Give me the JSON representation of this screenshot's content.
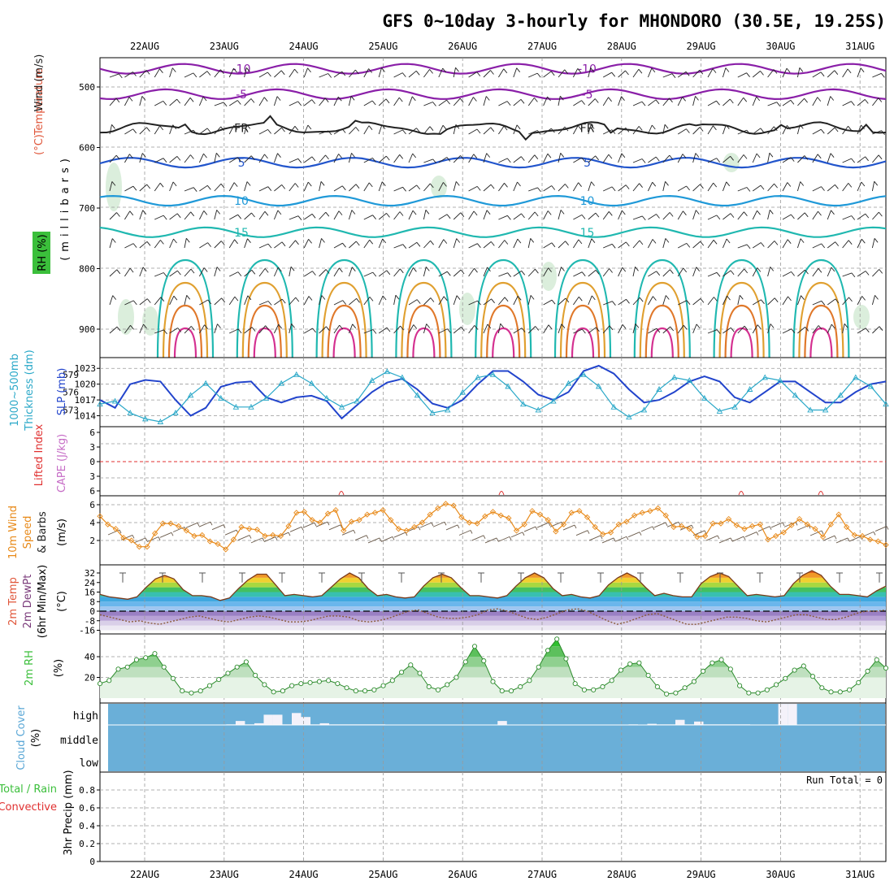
{
  "title": "GFS 0~10day 3-hourly for MHONDORO (30.5E, 19.25S)",
  "dates": [
    "22AUG",
    "23AUG",
    "24AUG",
    "25AUG",
    "26AUG",
    "27AUG",
    "28AUG",
    "29AUG",
    "30AUG",
    "31AUG"
  ],
  "colors": {
    "rh": "#3bbf3b",
    "temperature": "#e0563a",
    "wind": "#2a2a2a",
    "thickness": "#2aa8c8",
    "slp": "#2244cc",
    "cape": "#c66cc6",
    "lifted_index": "#e03030",
    "wind10m": "#e88a1a",
    "cloud": "#6aafd8",
    "precip_total": "#3bbf3b",
    "precip_conv": "#e03030"
  },
  "labels": {
    "upper_ylabel_wind": "Wind",
    "upper_ylabel_units": "(m/s)",
    "upper_ylabel_temp": "Temperature",
    "upper_ylabel_temp_units": "(°C)",
    "upper_ylabel_rh": "RH (%)",
    "upper_ylabel_mb": "(millibars)",
    "thick_label": "1000~500mb",
    "thick_label2": "Thickness (dm)",
    "slp_label": "SLP (mb)",
    "li_label": "Lifted Index",
    "cape_label": "CAPE (J/kg)",
    "wind10_label": "10m Wind",
    "wind10_label2": "Speed",
    "wind10_label3": "& Barbs",
    "wind10_units": "(m/s)",
    "temp2m_label": "2m Temp",
    "temp2m_label2": "2m DewPt",
    "temp2m_label3": "(6hr Min/Max)",
    "temp2m_units": "(°C)",
    "rh2m_label": "2m RH",
    "rh2m_units": "(%)",
    "cloud_label": "Cloud Cover",
    "cloud_units": "(%)",
    "cloud_high": "high",
    "cloud_middle": "middle",
    "cloud_low": "low",
    "precip_label1": "Total / Rain",
    "precip_label2": "Convective",
    "precip_label3": "3hr Precip (mm)",
    "run_total": "Run Total = 0",
    "contour_m10": "-10",
    "contour_m5": "-5",
    "contour_fr": "FR",
    "contour_5": "5",
    "contour_10": "10",
    "contour_15": "15"
  },
  "chart_data": [
    {
      "type": "line",
      "panel": "upper-air cross-section",
      "ylabel": "(millibars)",
      "ylim": [
        1000,
        450
      ],
      "yticks": [
        "500",
        "600",
        "700",
        "800",
        "900"
      ],
      "isotherms": [
        {
          "name": "-10",
          "level_mb": 470
        },
        {
          "name": "-5",
          "level_mb": 512
        },
        {
          "name": "FR",
          "level_mb": 568
        },
        {
          "name": "5",
          "level_mb": 625
        },
        {
          "name": "10",
          "level_mb": 688
        },
        {
          "name": "15",
          "level_mb": 740
        }
      ]
    },
    {
      "type": "line",
      "panel": "thickness-slp",
      "thickness_yticks": [
        "579",
        "576",
        "573"
      ],
      "slp_yticks": [
        "1023",
        "1020",
        "1017",
        "1014"
      ],
      "series": [
        {
          "name": "SLP (mb)",
          "values": [
            1017,
            1015.5,
            1020,
            1020.8,
            1020.5,
            1017,
            1014,
            1015.5,
            1019.5,
            1020.3,
            1020.5,
            1017.5,
            1016.5,
            1017.5,
            1017.8,
            1016.8,
            1013.5,
            1016,
            1018.5,
            1020.3,
            1021,
            1019,
            1016.3,
            1015.5,
            1017,
            1020,
            1022.5,
            1022.5,
            1020.5,
            1018,
            1017,
            1018.5,
            1022.5,
            1023.5,
            1022,
            1019,
            1016.5,
            1017,
            1018.5,
            1020.5,
            1021.5,
            1020.5,
            1017.5,
            1016.5,
            1018.5,
            1020.5,
            1020.5,
            1018.5,
            1016.5,
            1016.5,
            1018.5,
            1020,
            1020.5
          ]
        },
        {
          "name": "1000~500mb Thickness (dm)",
          "values": [
            574,
            574.5,
            572.5,
            571.5,
            571,
            572.5,
            575.5,
            577.5,
            575,
            573.5,
            573.5,
            575,
            577.5,
            579,
            577.5,
            575,
            573.5,
            574.5,
            578,
            579.5,
            578.5,
            575.5,
            572.5,
            573,
            576,
            578.5,
            579,
            577,
            574,
            573,
            574.5,
            577.5,
            579,
            577,
            573.5,
            571.8,
            573,
            576.5,
            578.5,
            578,
            575,
            572.8,
            573.5,
            576.5,
            578.5,
            578,
            575.5,
            573,
            573,
            575.5,
            578.5,
            577,
            574
          ]
        }
      ]
    },
    {
      "type": "line",
      "panel": "lifted-index-cape",
      "yticks": [
        "6",
        "3",
        "0",
        "3",
        "6"
      ],
      "series": [
        {
          "name": "Lifted Index",
          "values": [
            0
          ]
        }
      ]
    },
    {
      "type": "line",
      "panel": "10m-wind",
      "ylim": [
        0,
        6.8
      ],
      "yticks": [
        "6",
        "4",
        "2"
      ],
      "series": [
        {
          "name": "10m Wind Speed",
          "values": [
            4.7,
            3.8,
            3.3,
            2.3,
            2.0,
            1.3,
            1.3,
            2.8,
            3.9,
            3.9,
            3.6,
            3.1,
            2.5,
            2.6,
            1.9,
            1.6,
            1.0,
            2.1,
            3.5,
            3.3,
            3.2,
            2.5,
            2.6,
            2.5,
            3.6,
            5.1,
            5.2,
            4.3,
            4.0,
            5.0,
            5.4,
            3.1,
            4.1,
            4.3,
            4.9,
            5.1,
            5.4,
            4.3,
            3.3,
            3.1,
            3.5,
            4.0,
            4.9,
            5.6,
            6.1,
            5.9,
            4.6,
            4.0,
            3.9,
            4.7,
            5.2,
            4.8,
            4.5,
            3.1,
            3.8,
            5.3,
            4.9,
            4.3,
            3.0,
            3.8,
            5.1,
            5.3,
            4.6,
            3.5,
            2.7,
            2.9,
            3.8,
            4.1,
            4.8,
            5.1,
            5.3,
            5.6,
            4.8,
            3.5,
            3.6,
            3.3,
            2.4,
            2.5,
            3.9,
            3.9,
            4.4,
            3.7,
            3.3,
            3.6,
            3.8,
            2.1,
            2.5,
            2.9,
            3.7,
            4.4,
            3.8,
            3.3,
            2.4,
            3.8,
            4.9,
            3.5,
            2.6,
            2.5,
            2.1,
            1.9,
            1.5
          ]
        }
      ]
    },
    {
      "type": "area",
      "panel": "2m-temp",
      "ylim": [
        -16,
        36
      ],
      "yticks": [
        "32",
        "24",
        "16",
        "8",
        "0",
        "-8",
        "-16"
      ],
      "series": [
        {
          "name": "2m Temp",
          "values": [
            14,
            12,
            11,
            10,
            12,
            20,
            27,
            30,
            27,
            18,
            13,
            13,
            12,
            9,
            11,
            19,
            26,
            31,
            31,
            22,
            13,
            14,
            13,
            12,
            13,
            20,
            27,
            32,
            28,
            19,
            13,
            14,
            12,
            11,
            12,
            21,
            28,
            31,
            28,
            20,
            13,
            13,
            12,
            11,
            13,
            21,
            28,
            32,
            28,
            19,
            13,
            14,
            12,
            11,
            13,
            22,
            28,
            32,
            28,
            20,
            13,
            15,
            13,
            12,
            12,
            23,
            29,
            32,
            29,
            21,
            13,
            14,
            13,
            12,
            13,
            23,
            30,
            34,
            30,
            21,
            14,
            14,
            13,
            12,
            17,
            21
          ]
        },
        {
          "name": "2m DewPt",
          "values": [
            -3,
            -5,
            -7,
            -9,
            -8,
            -10,
            -11,
            -9,
            -7,
            -5,
            -4,
            -6,
            -8,
            -9,
            -7,
            -5,
            -4,
            -5,
            -7,
            -9,
            -9,
            -8,
            -6,
            -4,
            -4,
            -5,
            -8,
            -9,
            -8,
            -6,
            -3,
            0,
            1,
            -2,
            -5,
            -6,
            -6,
            -5,
            -3,
            1,
            2,
            0,
            -3,
            -6,
            -7,
            -5,
            -2,
            1,
            2,
            0,
            -4,
            -8,
            -11,
            -9,
            -6,
            -3,
            -2,
            -5,
            -8,
            -11,
            -11,
            -9,
            -7,
            -5,
            -5,
            -6,
            -8,
            -9,
            -7,
            -5,
            -3,
            -3,
            -5,
            -7,
            -7,
            -5,
            -2,
            0,
            0,
            1
          ]
        }
      ]
    },
    {
      "type": "area",
      "panel": "2m-rh",
      "ylim": [
        0,
        58
      ],
      "yticks": [
        "40",
        "20"
      ],
      "series": [
        {
          "name": "2m RH",
          "values": [
            14,
            17,
            28,
            30,
            37,
            39,
            43,
            30,
            19,
            7,
            5,
            7,
            12,
            18,
            24,
            30,
            35,
            22,
            13,
            6,
            7,
            12,
            14,
            15,
            16,
            17,
            14,
            10,
            7,
            7,
            8,
            12,
            17,
            25,
            32,
            24,
            11,
            8,
            13,
            20,
            35,
            50,
            36,
            16,
            7,
            7,
            11,
            17,
            30,
            46,
            57,
            38,
            14,
            8,
            8,
            11,
            17,
            27,
            33,
            34,
            22,
            11,
            4,
            5,
            10,
            16,
            26,
            34,
            37,
            28,
            12,
            5,
            5,
            8,
            13,
            19,
            27,
            31,
            21,
            10,
            6,
            6,
            8,
            15,
            26,
            37,
            29
          ]
        }
      ]
    },
    {
      "type": "bar",
      "panel": "cloud-cover",
      "yticks": [
        "high",
        "middle",
        "low"
      ],
      "series": [
        {
          "name": "high cloud",
          "values": [
            0,
            0,
            0,
            0,
            0,
            0,
            0,
            0,
            0,
            0,
            0,
            0,
            0,
            0,
            1,
            7,
            1,
            3,
            18,
            18,
            1,
            21,
            14,
            1,
            3,
            1,
            1,
            1,
            1,
            1,
            1,
            0,
            0,
            0,
            0,
            0,
            0,
            0,
            0,
            0,
            0,
            0,
            0,
            7,
            0,
            0,
            0,
            0,
            0,
            0,
            0,
            0,
            0,
            0,
            0,
            0,
            0,
            1,
            0,
            2,
            1,
            1,
            9,
            1,
            6,
            1,
            1,
            1,
            1,
            1,
            0,
            0,
            0,
            37,
            37,
            0,
            0,
            0,
            0,
            0,
            0,
            0,
            0,
            0,
            0
          ]
        }
      ]
    },
    {
      "type": "bar",
      "panel": "3hr-precip",
      "ylim": [
        0,
        1
      ],
      "yticks": [
        "0.8",
        "0.6",
        "0.4",
        "0.2",
        "0"
      ],
      "series": [
        {
          "name": "3hr Precip (mm)",
          "values": [
            0
          ]
        }
      ]
    }
  ]
}
